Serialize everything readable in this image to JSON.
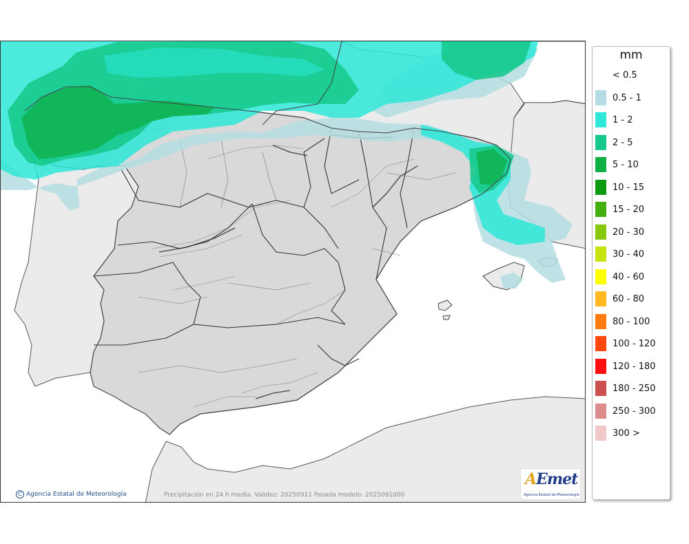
{
  "legend": {
    "unit": "mm",
    "items": [
      {
        "label": "< 0.5",
        "color": "#ffffff"
      },
      {
        "label": "0.5 - 1",
        "color": "#b4dde3"
      },
      {
        "label": "1 - 2",
        "color": "#2ee8d8"
      },
      {
        "label": "2 - 5",
        "color": "#16c98a"
      },
      {
        "label": "5 - 10",
        "color": "#0fae47"
      },
      {
        "label": "10 - 15",
        "color": "#0e9a10"
      },
      {
        "label": "15 - 20",
        "color": "#44b010"
      },
      {
        "label": "20 - 30",
        "color": "#86c80c"
      },
      {
        "label": "30 - 40",
        "color": "#c8e210"
      },
      {
        "label": "40 - 60",
        "color": "#ffff00"
      },
      {
        "label": "60 - 80",
        "color": "#ffb820"
      },
      {
        "label": "80 - 100",
        "color": "#ff7a10"
      },
      {
        "label": "100 - 120",
        "color": "#ff4810"
      },
      {
        "label": "120 - 180",
        "color": "#ff1010"
      },
      {
        "label": "180 - 250",
        "color": "#cc5050"
      },
      {
        "label": "250 - 300",
        "color": "#dc8c8c"
      },
      {
        "label": "300 >",
        "color": "#f0c8c8"
      }
    ]
  },
  "map": {
    "copyright": "Agencia Estatal de Meteorología",
    "caption": "Precipitación en 24 h media. Validez: 20250911 Pasada modelo: 2025091000",
    "logo": {
      "text": "AEmet",
      "subtitle": "Agencia Estatal de Meteorología"
    }
  }
}
